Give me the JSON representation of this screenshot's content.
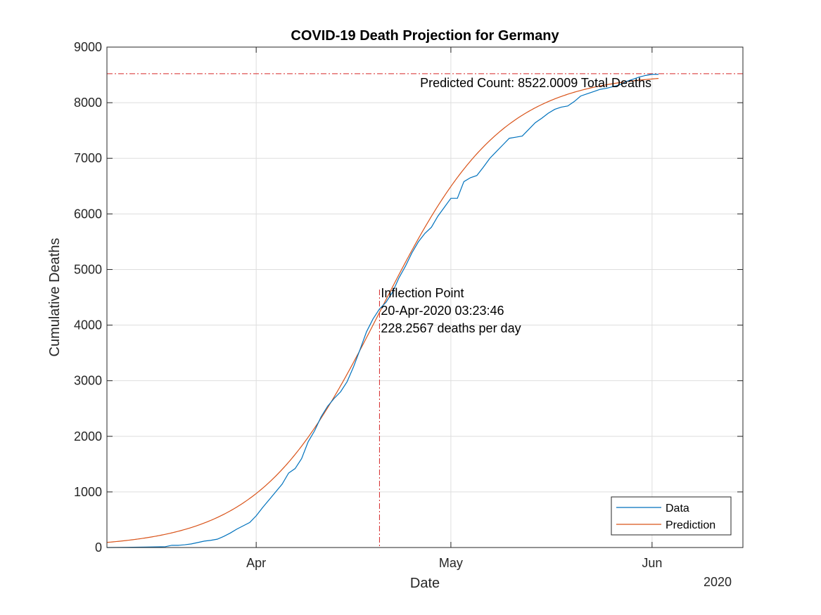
{
  "chart_data": {
    "type": "line",
    "title": "COVID-19 Death Projection for Germany",
    "xlabel": "Date",
    "ylabel": "Cumulative Deaths",
    "year_label": "2020",
    "xlim": [
      "2020-03-09",
      "2020-06-15"
    ],
    "ylim": [
      0,
      9000
    ],
    "y_ticks": [
      0,
      1000,
      2000,
      3000,
      4000,
      5000,
      6000,
      7000,
      8000,
      9000
    ],
    "x_ticks": [
      {
        "date": "2020-04-01",
        "label": "Apr"
      },
      {
        "date": "2020-05-01",
        "label": "May"
      },
      {
        "date": "2020-06-01",
        "label": "Jun"
      }
    ],
    "grid": true,
    "legend_position": "bottom-right",
    "colors": {
      "data": "#0072BD",
      "prediction": "#D95319",
      "reference": "#D62728"
    },
    "series": [
      {
        "name": "Data",
        "points": [
          [
            "2020-03-09",
            0
          ],
          [
            "2020-03-12",
            3
          ],
          [
            "2020-03-15",
            8
          ],
          [
            "2020-03-18",
            15
          ],
          [
            "2020-03-19",
            40
          ],
          [
            "2020-03-20",
            40
          ],
          [
            "2020-03-21",
            50
          ],
          [
            "2020-03-22",
            65
          ],
          [
            "2020-03-23",
            90
          ],
          [
            "2020-03-24",
            115
          ],
          [
            "2020-03-25",
            130
          ],
          [
            "2020-03-26",
            150
          ],
          [
            "2020-03-27",
            200
          ],
          [
            "2020-03-28",
            260
          ],
          [
            "2020-03-29",
            330
          ],
          [
            "2020-03-30",
            390
          ],
          [
            "2020-03-31",
            450
          ],
          [
            "2020-04-01",
            570
          ],
          [
            "2020-04-02",
            720
          ],
          [
            "2020-04-03",
            860
          ],
          [
            "2020-04-04",
            1000
          ],
          [
            "2020-04-05",
            1140
          ],
          [
            "2020-04-06",
            1340
          ],
          [
            "2020-04-07",
            1420
          ],
          [
            "2020-04-08",
            1600
          ],
          [
            "2020-04-09",
            1900
          ],
          [
            "2020-04-10",
            2100
          ],
          [
            "2020-04-11",
            2350
          ],
          [
            "2020-04-12",
            2540
          ],
          [
            "2020-04-13",
            2680
          ],
          [
            "2020-04-14",
            2800
          ],
          [
            "2020-04-15",
            2980
          ],
          [
            "2020-04-16",
            3250
          ],
          [
            "2020-04-17",
            3560
          ],
          [
            "2020-04-18",
            3880
          ],
          [
            "2020-04-19",
            4110
          ],
          [
            "2020-04-20",
            4290
          ],
          [
            "2020-04-21",
            4410
          ],
          [
            "2020-04-22",
            4590
          ],
          [
            "2020-04-23",
            4850
          ],
          [
            "2020-04-24",
            5060
          ],
          [
            "2020-04-25",
            5300
          ],
          [
            "2020-04-26",
            5500
          ],
          [
            "2020-04-27",
            5650
          ],
          [
            "2020-04-28",
            5760
          ],
          [
            "2020-04-29",
            5960
          ],
          [
            "2020-04-30",
            6120
          ],
          [
            "2020-05-01",
            6280
          ],
          [
            "2020-05-02",
            6280
          ],
          [
            "2020-05-03",
            6580
          ],
          [
            "2020-05-04",
            6650
          ],
          [
            "2020-05-05",
            6690
          ],
          [
            "2020-05-06",
            6840
          ],
          [
            "2020-05-07",
            7000
          ],
          [
            "2020-05-08",
            7120
          ],
          [
            "2020-05-09",
            7240
          ],
          [
            "2020-05-10",
            7360
          ],
          [
            "2020-05-11",
            7380
          ],
          [
            "2020-05-12",
            7400
          ],
          [
            "2020-05-13",
            7520
          ],
          [
            "2020-05-14",
            7640
          ],
          [
            "2020-05-15",
            7720
          ],
          [
            "2020-05-16",
            7810
          ],
          [
            "2020-05-17",
            7880
          ],
          [
            "2020-05-18",
            7920
          ],
          [
            "2020-05-19",
            7940
          ],
          [
            "2020-05-20",
            8020
          ],
          [
            "2020-05-21",
            8120
          ],
          [
            "2020-05-22",
            8160
          ],
          [
            "2020-05-23",
            8200
          ],
          [
            "2020-05-24",
            8240
          ],
          [
            "2020-05-25",
            8260
          ],
          [
            "2020-05-26",
            8290
          ],
          [
            "2020-05-27",
            8320
          ],
          [
            "2020-05-28",
            8380
          ],
          [
            "2020-05-29",
            8420
          ],
          [
            "2020-05-30",
            8460
          ],
          [
            "2020-05-31",
            8490
          ],
          [
            "2020-06-01",
            8510
          ],
          [
            "2020-06-02",
            8510
          ]
        ]
      },
      {
        "name": "Prediction",
        "model": {
          "type": "logistic",
          "total": 8522.0009,
          "inflection": "2020-04-20T03:23:46",
          "peak_rate_per_day": 228.2567
        },
        "points": [
          [
            "2020-03-09",
            100
          ],
          [
            "2020-03-14",
            187
          ],
          [
            "2020-03-19",
            341
          ],
          [
            "2020-03-24",
            600
          ],
          [
            "2020-03-29",
            1000
          ],
          [
            "2020-04-03",
            1610
          ],
          [
            "2020-04-08",
            2420
          ],
          [
            "2020-04-13",
            3360
          ],
          [
            "2020-04-18",
            4300
          ],
          [
            "2020-04-20",
            4270
          ],
          [
            "2020-04-23",
            5150
          ],
          [
            "2020-04-28",
            5960
          ],
          [
            "2020-05-03",
            6650
          ],
          [
            "2020-05-08",
            7200
          ],
          [
            "2020-05-13",
            7620
          ],
          [
            "2020-05-18",
            7940
          ],
          [
            "2020-05-23",
            8160
          ],
          [
            "2020-05-28",
            8320
          ],
          [
            "2020-06-02",
            8430
          ]
        ]
      }
    ],
    "annotations": {
      "total_line": {
        "value": 8522.0009,
        "label": "Predicted Count: 8522.0009 Total Deaths"
      },
      "inflection": {
        "date": "2020-04-20",
        "lines": [
          "Inflection Point",
          "20-Apr-2020 03:23:46",
          "228.2567 deaths per day"
        ]
      }
    }
  }
}
